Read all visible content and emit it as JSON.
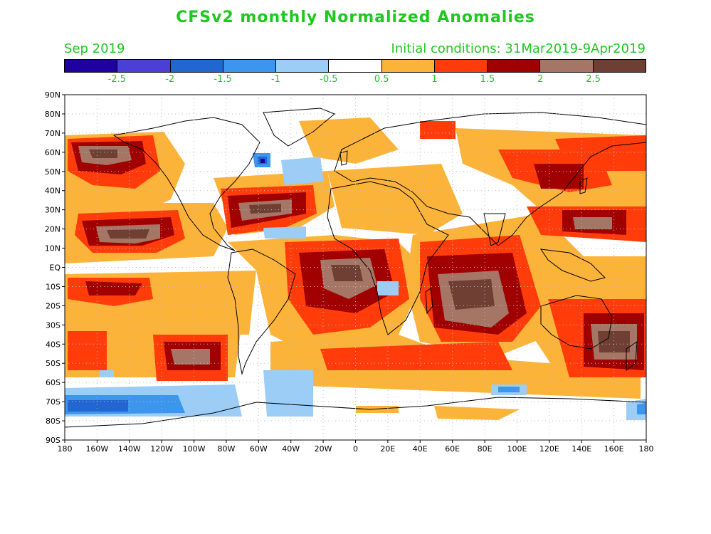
{
  "header": {
    "title": "CFSv2 monthly Normalized Anomalies",
    "month": "Sep 2019",
    "initial_conditions": "Initial conditions: 31Mar2019-9Apr2019"
  },
  "colorbar": {
    "colors": [
      "#1f00a0",
      "#4c3fd6",
      "#2266d2",
      "#3c96ee",
      "#9ccdf6",
      "#ffffff",
      "#fcb33a",
      "#ff3c0a",
      "#a00000",
      "#a57565",
      "#6e3f32"
    ],
    "labels": [
      "-2.5",
      "-2",
      "-1.5",
      "-1",
      "-0.5",
      "0.5",
      "1",
      "1.5",
      "2",
      "2.5"
    ]
  },
  "map": {
    "lat_labels": [
      "90N",
      "80N",
      "70N",
      "60N",
      "50N",
      "40N",
      "30N",
      "20N",
      "10N",
      "EQ",
      "10S",
      "20S",
      "30S",
      "40S",
      "50S",
      "60S",
      "70S",
      "80S",
      "90S"
    ],
    "lon_labels": [
      "180",
      "160W",
      "140W",
      "120W",
      "100W",
      "80W",
      "60W",
      "40W",
      "20W",
      "0",
      "20E",
      "40E",
      "60E",
      "80E",
      "100E",
      "120E",
      "140E",
      "160E",
      "180"
    ]
  }
}
